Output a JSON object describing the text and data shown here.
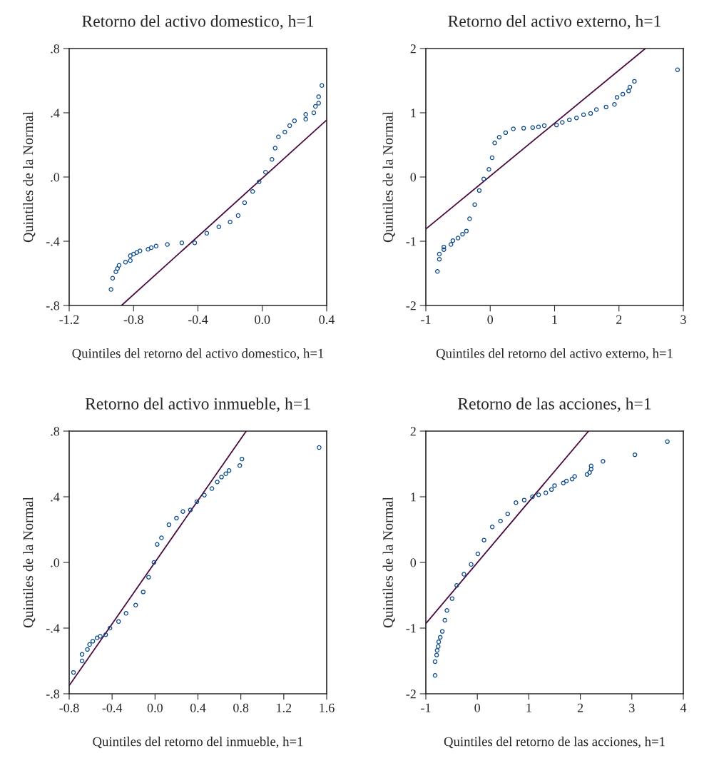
{
  "chart_data": [
    {
      "type": "scatter",
      "title": "Retorno del activo domestico, h=1",
      "xlabel": "Quintiles del retorno del activo domestico, h=1",
      "ylabel": "Quintiles de la Normal",
      "xlim": [
        -1.2,
        0.4
      ],
      "ylim": [
        -0.8,
        0.8
      ],
      "xticks": [
        -1.2,
        -0.8,
        -0.4,
        {
          "value": 0,
          "label": "0.0"
        },
        0.4
      ],
      "yticks": [
        {
          "value": -0.8,
          "label": "-.8"
        },
        {
          "value": -0.4,
          "label": "-.4"
        },
        {
          "value": 0,
          "label": ".0"
        },
        {
          "value": 0.4,
          "label": ".4"
        },
        {
          "value": 0.8,
          "label": ".8"
        }
      ],
      "grid": false,
      "legend": false,
      "series": [
        {
          "marker": "circle",
          "color": "#0b4a8a",
          "x": [
            -0.94,
            -0.93,
            -0.91,
            -0.9,
            -0.89,
            -0.85,
            -0.82,
            -0.82,
            -0.8,
            -0.78,
            -0.76,
            -0.71,
            -0.69,
            -0.66,
            -0.59,
            -0.5,
            -0.42,
            -0.345,
            -0.27,
            -0.2,
            -0.15,
            -0.11,
            -0.06,
            -0.02,
            0.02,
            0.06,
            0.08,
            0.1,
            0.14,
            0.17,
            0.2,
            0.27,
            0.27,
            0.32,
            0.33,
            0.35,
            0.35,
            0.37
          ],
          "values": [
            -0.7,
            -0.63,
            -0.59,
            -0.57,
            -0.55,
            -0.53,
            -0.52,
            -0.49,
            -0.48,
            -0.47,
            -0.46,
            -0.45,
            -0.44,
            -0.43,
            -0.42,
            -0.41,
            -0.41,
            -0.35,
            -0.31,
            -0.28,
            -0.24,
            -0.16,
            -0.09,
            -0.03,
            0.03,
            0.11,
            0.18,
            0.25,
            0.28,
            0.32,
            0.35,
            0.36,
            0.39,
            0.4,
            0.44,
            0.46,
            0.5,
            0.57
          ]
        },
        {
          "type": "line",
          "marker": "none",
          "color": "#4a0a3f",
          "x": [
            -0.875,
            0.4
          ],
          "values": [
            -0.8,
            0.355
          ]
        }
      ]
    },
    {
      "type": "scatter",
      "title": "Retorno del activo externo, h=1",
      "xlabel": "Quintiles del retorno del activo externo, h=1",
      "ylabel": "Quintiles de la Normal",
      "xlim": [
        -1,
        3
      ],
      "ylim": [
        -2,
        2
      ],
      "xticks": [
        -1,
        0,
        1,
        2,
        3
      ],
      "yticks": [
        -2,
        -1,
        0,
        1,
        2
      ],
      "grid": false,
      "legend": false,
      "series": [
        {
          "marker": "circle",
          "color": "#0b4a8a",
          "x": [
            -0.82,
            -0.79,
            -0.79,
            -0.72,
            -0.72,
            -0.61,
            -0.58,
            -0.5,
            -0.43,
            -0.37,
            -0.32,
            -0.24,
            -0.17,
            -0.1,
            -0.02,
            0.03,
            0.07,
            0.14,
            0.24,
            0.36,
            0.52,
            0.66,
            0.75,
            0.84,
            1.03,
            1.12,
            1.23,
            1.34,
            1.45,
            1.56,
            1.65,
            1.8,
            1.93,
            1.97,
            2.06,
            2.15,
            2.17,
            2.24,
            2.91
          ],
          "values": [
            -1.47,
            -1.28,
            -1.2,
            -1.13,
            -1.09,
            -1.05,
            -0.99,
            -0.95,
            -0.89,
            -0.84,
            -0.65,
            -0.43,
            -0.21,
            -0.03,
            0.12,
            0.3,
            0.53,
            0.62,
            0.69,
            0.75,
            0.76,
            0.77,
            0.78,
            0.8,
            0.81,
            0.85,
            0.89,
            0.92,
            0.97,
            0.99,
            1.05,
            1.09,
            1.13,
            1.24,
            1.29,
            1.34,
            1.4,
            1.49,
            1.67
          ]
        },
        {
          "type": "line",
          "marker": "none",
          "color": "#4a0a3f",
          "x": [
            -1,
            2.41
          ],
          "values": [
            -0.81,
            2
          ]
        }
      ]
    },
    {
      "type": "scatter",
      "title": "Retorno del activo inmueble, h=1",
      "xlabel": "Quintiles del retorno del inmueble, h=1",
      "ylabel": "Quintiles de la Normal",
      "xlim": [
        -0.8,
        1.6
      ],
      "ylim": [
        -0.8,
        0.8
      ],
      "xticks": [
        -0.8,
        -0.4,
        {
          "value": 0,
          "label": "0.0"
        },
        0.4,
        0.8,
        1.2,
        1.6
      ],
      "yticks": [
        {
          "value": -0.8,
          "label": "-.8"
        },
        {
          "value": -0.4,
          "label": "-.4"
        },
        {
          "value": 0,
          "label": ".0"
        },
        {
          "value": 0.4,
          "label": ".4"
        },
        {
          "value": 0.8,
          "label": ".8"
        }
      ],
      "grid": false,
      "legend": false,
      "series": [
        {
          "marker": "circle",
          "color": "#0b4a8a",
          "x": [
            -0.76,
            -0.68,
            -0.68,
            -0.63,
            -0.61,
            -0.58,
            -0.54,
            -0.51,
            -0.46,
            -0.42,
            -0.34,
            -0.27,
            -0.18,
            -0.11,
            -0.06,
            -0.01,
            0.02,
            0.06,
            0.13,
            0.2,
            0.26,
            0.33,
            0.39,
            0.46,
            0.53,
            0.58,
            0.62,
            0.66,
            0.69,
            0.79,
            0.81,
            1.53
          ],
          "values": [
            -0.67,
            -0.6,
            -0.56,
            -0.53,
            -0.5,
            -0.48,
            -0.46,
            -0.45,
            -0.44,
            -0.4,
            -0.36,
            -0.31,
            -0.26,
            -0.18,
            -0.09,
            0.0,
            0.11,
            0.15,
            0.23,
            0.27,
            0.31,
            0.32,
            0.37,
            0.41,
            0.45,
            0.49,
            0.52,
            0.54,
            0.56,
            0.59,
            0.63,
            0.7
          ]
        },
        {
          "type": "line",
          "marker": "none",
          "color": "#4a0a3f",
          "x": [
            -0.8,
            0.85
          ],
          "values": [
            -0.75,
            0.8
          ]
        }
      ]
    },
    {
      "type": "scatter",
      "title": "Retorno de las acciones, h=1",
      "xlabel": "Quintiles del retorno de las acciones, h=1",
      "ylabel": "Quintiles de la Normal",
      "xlim": [
        -1,
        4
      ],
      "ylim": [
        -2,
        2
      ],
      "xticks": [
        -1,
        0,
        1,
        2,
        3,
        4
      ],
      "yticks": [
        -2,
        -1,
        0,
        1,
        2
      ],
      "grid": false,
      "legend": false,
      "series": [
        {
          "marker": "circle",
          "color": "#0b4a8a",
          "x": [
            -0.82,
            -0.82,
            -0.79,
            -0.78,
            -0.76,
            -0.75,
            -0.72,
            -0.68,
            -0.63,
            -0.59,
            -0.49,
            -0.4,
            -0.26,
            -0.12,
            0.01,
            0.13,
            0.29,
            0.45,
            0.59,
            0.75,
            0.91,
            1.07,
            1.19,
            1.33,
            1.44,
            1.5,
            1.67,
            1.73,
            1.84,
            1.89,
            2.13,
            2.18,
            2.21,
            2.21,
            2.44,
            3.06,
            3.69
          ],
          "values": [
            -1.72,
            -1.51,
            -1.41,
            -1.34,
            -1.28,
            -1.21,
            -1.14,
            -1.05,
            -0.88,
            -0.73,
            -0.55,
            -0.35,
            -0.18,
            -0.03,
            0.13,
            0.34,
            0.54,
            0.63,
            0.74,
            0.91,
            0.95,
            1.0,
            1.03,
            1.06,
            1.11,
            1.17,
            1.21,
            1.24,
            1.27,
            1.31,
            1.34,
            1.37,
            1.42,
            1.47,
            1.54,
            1.64,
            1.84
          ]
        },
        {
          "type": "line",
          "marker": "none",
          "color": "#4a0a3f",
          "x": [
            -1,
            2.16
          ],
          "values": [
            -0.93,
            2
          ]
        }
      ]
    }
  ]
}
